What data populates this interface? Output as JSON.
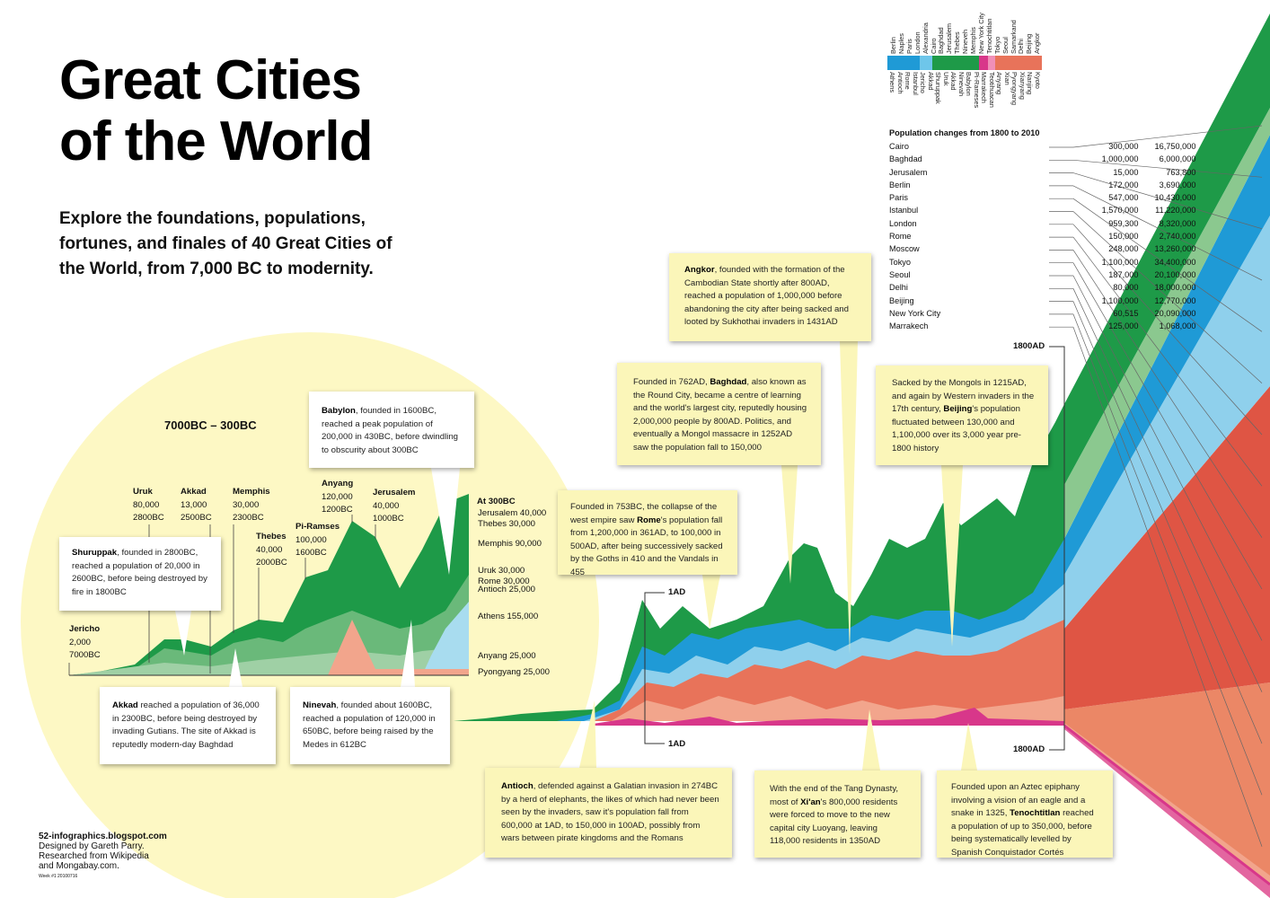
{
  "header": {
    "title_line1": "Great Cities",
    "title_line2": "of the World",
    "subtitle": "Explore the foundations, populations, fortunes, and finales of 40 Great Cities of the World, from 7,000 BC to modernity."
  },
  "credits": {
    "site": "52-infographics.blogspot.com",
    "designer": "Designed by Gareth Parry.",
    "research1": "Researched from Wikipedia",
    "research2": "and Mongabay.com.",
    "week": "Week #1 20100716"
  },
  "colors": {
    "circle": "#fdf8c4",
    "green": "#1e9a48",
    "green_light": "#7fc289",
    "blue": "#1f9ad6",
    "blue_light": "#8fd0ec",
    "salmon": "#e8735a",
    "salmon_light": "#f2a58c",
    "red": "#df5544",
    "pink": "#d8378a",
    "box_yellow": "#fbf6b9"
  },
  "legend": {
    "top_names": [
      "Berlin",
      "Naples",
      "Paris",
      "London",
      "Alexandria",
      "Cairo",
      "Baghdad",
      "Jerusalem",
      "Thebes",
      "Nineveh",
      "Memphis",
      "New York City",
      "Tenochtitlan",
      "Tokyo",
      "Seoul",
      "Samarkand",
      "Delhi",
      "Beijing",
      "Angkor"
    ],
    "bottom_names": [
      "Athens",
      "Antioch",
      "Rome",
      "Istanbul",
      "Jericho",
      "Akkad",
      "Shuruppak",
      "Uruk",
      "Akkad",
      "Ninevah",
      "Babylon",
      "Pi-Rameses",
      "Marrakech",
      "Teotihuacan",
      "Anyang",
      "Xian",
      "Pyongyang",
      "Xianyang",
      "Nanjing",
      "Kyoto"
    ]
  },
  "pop_table": {
    "title": "Population changes from 1800 to 2010",
    "rows": [
      {
        "city": "Cairo",
        "p1800": "300,000",
        "p2010": "16,750,000"
      },
      {
        "city": "Baghdad",
        "p1800": "1,000,000",
        "p2010": "6,000,000"
      },
      {
        "city": "Jerusalem",
        "p1800": "15,000",
        "p2010": "763,800"
      },
      {
        "city": "Berlin",
        "p1800": "172,000",
        "p2010": "3,690,000"
      },
      {
        "city": "Paris",
        "p1800": "547,000",
        "p2010": "10,430,000"
      },
      {
        "city": "Istanbul",
        "p1800": "1,570,000",
        "p2010": "11,220,000"
      },
      {
        "city": "London",
        "p1800": "959,300",
        "p2010": "8,320,000"
      },
      {
        "city": "Rome",
        "p1800": "150,000",
        "p2010": "2,740,000"
      },
      {
        "city": "Moscow",
        "p1800": "248,000",
        "p2010": "13,260,000"
      },
      {
        "city": "Tokyo",
        "p1800": "1,100,000",
        "p2010": "34,400,000"
      },
      {
        "city": "Seoul",
        "p1800": "187,000",
        "p2010": "20,100,000"
      },
      {
        "city": "Delhi",
        "p1800": "80,000",
        "p2010": "18,000,000"
      },
      {
        "city": "Beijing",
        "p1800": "1,100,000",
        "p2010": "12,770,000"
      },
      {
        "city": "New York City",
        "p1800": "60,515",
        "p2010": "20,090,000"
      },
      {
        "city": "Marrakech",
        "p1800": "125,000",
        "p2010": "1,068,000"
      }
    ]
  },
  "chart_data": {
    "type": "area",
    "inset_title": "7000BC – 300BC",
    "ancient_cities": [
      {
        "name": "Jericho",
        "population": "2,000",
        "year": "7000BC"
      },
      {
        "name": "Uruk",
        "population": "80,000",
        "year": "2800BC"
      },
      {
        "name": "Akkad",
        "population": "13,000",
        "year": "2500BC"
      },
      {
        "name": "Memphis",
        "population": "30,000",
        "year": "2300BC"
      },
      {
        "name": "Thebes",
        "population": "40,000",
        "year": "2000BC"
      },
      {
        "name": "Pi-Ramses",
        "population": "100,000",
        "year": "1600BC"
      },
      {
        "name": "Anyang",
        "population": "120,000",
        "year": "1200BC"
      },
      {
        "name": "Jerusalem",
        "population": "40,000",
        "year": "1000BC"
      }
    ],
    "at_300bc_title": "At 300BC",
    "at_300bc": [
      {
        "label": "Jerusalem 40,000",
        "value": 40000
      },
      {
        "label": "Thebes 30,000",
        "value": 30000
      },
      {
        "label": "Memphis 90,000",
        "value": 90000
      },
      {
        "label": "Uruk 30,000",
        "value": 30000
      },
      {
        "label": "Rome 30,000",
        "value": 30000
      },
      {
        "label": "Antioch 25,000",
        "value": 25000
      },
      {
        "label": "Athens 155,000",
        "value": 155000
      },
      {
        "label": "Anyang 25,000",
        "value": 25000
      },
      {
        "label": "Pyongyang 25,000",
        "value": 25000
      }
    ],
    "axis_markers": [
      "1AD",
      "1AD",
      "1800AD",
      "1800AD"
    ]
  },
  "annotations": {
    "shuruppak": {
      "bold": "Shuruppak",
      "text": ", founded in 2800BC, reached a population of 20,000 in 2600BC, before being destroyed by fire in 1800BC"
    },
    "akkad": {
      "bold": "Akkad",
      "text": " reached a population of 36,000 in 2300BC, before being destroyed by invading Gutians. The site of Akkad is reputedly modern-day Baghdad"
    },
    "ninevah": {
      "bold": "Ninevah",
      "text": ", founded about 1600BC, reached a population of 120,000 in 650BC, before being raised by the Medes in 612BC"
    },
    "babylon": {
      "bold": "Babylon",
      "text": ", founded in 1600BC, reached a peak population of 200,000 in 430BC, before dwindling to obscurity about 300BC"
    },
    "rome": {
      "pre": "Founded in 753BC, the collapse of the west empire saw ",
      "bold": "Rome",
      "text": "'s population fall from 1,200,000 in 361AD, to 100,000 in 500AD, after being successively sacked by the Goths in 410 and the Vandals in 455"
    },
    "baghdad": {
      "pre": "Founded in 762AD, ",
      "bold": "Baghdad",
      "text": ", also known as the Round City, became a centre of learning and the world's largest city, reputedly housing 2,000,000 people by 800AD. Politics, and eventually a Mongol massacre in 1252AD saw the population fall to 150,000"
    },
    "angkor": {
      "bold": "Angkor",
      "text": ", founded with the formation of the Cambodian State shortly after 800AD, reached a population of 1,000,000 before abandoning the city after being sacked and looted by Sukhothai invaders in 1431AD"
    },
    "beijing": {
      "pre": "Sacked by the Mongols in 1215AD, and again by Western invaders in the 17th century, ",
      "bold": "Beijing",
      "text": "'s population fluctuated between 130,000 and 1,100,000 over its 3,000 year pre-1800 history"
    },
    "antioch": {
      "bold": "Antioch",
      "text": ", defended against a Galatian invasion in 274BC by a herd of elephants, the likes of which had never been seen by the invaders, saw it's population fall from 600,000 at 1AD, to 150,000 in 100AD, possibly from wars between pirate kingdoms and the Romans"
    },
    "xian": {
      "pre": "With the end of the Tang Dynasty, most of ",
      "bold": "Xi'an",
      "text": "'s 800,000 residents were forced to move to the new capital city Luoyang, leaving 118,000 residents in 1350AD"
    },
    "tenochtitlan": {
      "pre": "Founded upon an Aztec epiphany involving a vision of an eagle and a snake in 1325, ",
      "bold": "Tenochtitlan",
      "text": " reached a population of up to 350,000, before being systematically levelled by Spanish Conquistador Cortés"
    }
  }
}
